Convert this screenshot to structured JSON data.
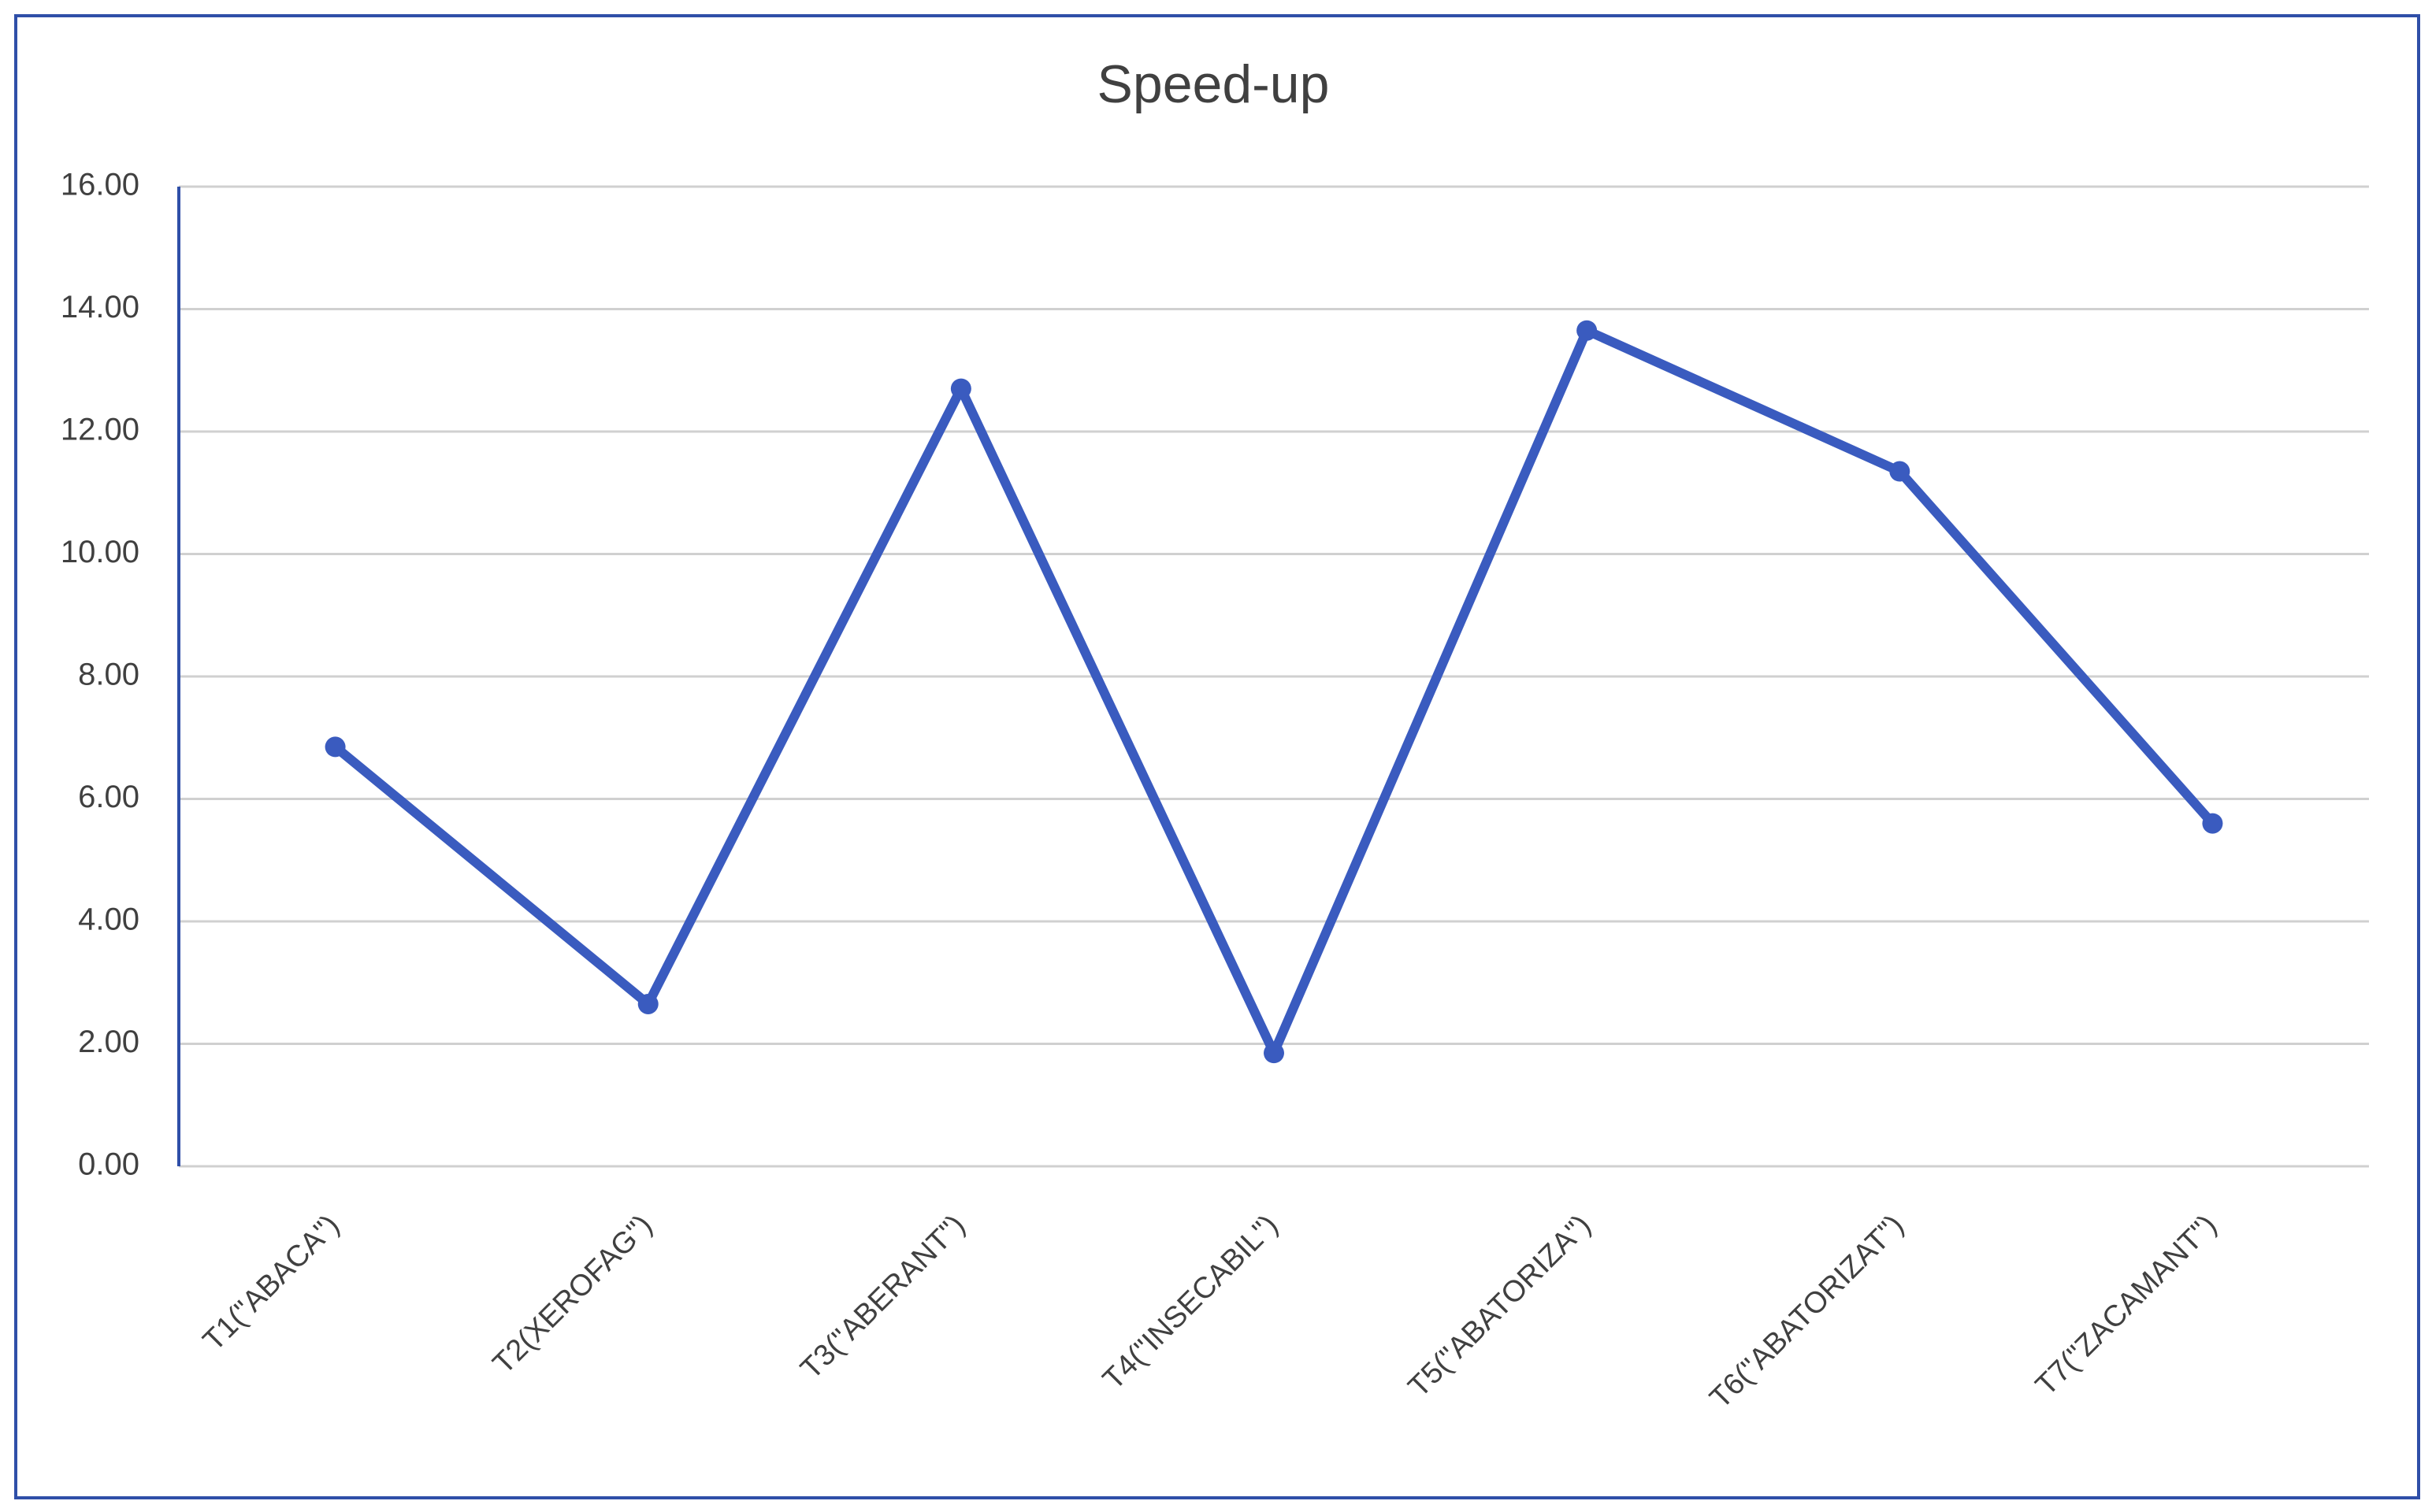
{
  "chart_data": {
    "type": "line",
    "title": "Speed-up",
    "categories": [
      "T1(\"ABACA\")",
      "T2(XEROFAG\")",
      "T3(\"ABERANT\")",
      "T4(\"INSECABIL\")",
      "T5(\"ABATORIZA\")",
      "T6(\"ABATORIZAT\")",
      "T7(\"ZACAMANT\")"
    ],
    "series": [
      {
        "name": "Speed-up",
        "color": "#3a5bbf",
        "values": [
          6.85,
          2.65,
          12.7,
          1.85,
          13.65,
          11.35,
          5.6
        ]
      }
    ],
    "ylim": [
      0,
      16
    ],
    "yticks": [
      {
        "value": 0,
        "label": "0.00"
      },
      {
        "value": 2,
        "label": "2.00"
      },
      {
        "value": 4,
        "label": "4.00"
      },
      {
        "value": 6,
        "label": "6.00"
      },
      {
        "value": 8,
        "label": "8.00"
      },
      {
        "value": 10,
        "label": "10.00"
      },
      {
        "value": 12,
        "label": "12.00"
      },
      {
        "value": 14,
        "label": "14.00"
      },
      {
        "value": 16,
        "label": "16.00"
      }
    ],
    "grid": true
  }
}
